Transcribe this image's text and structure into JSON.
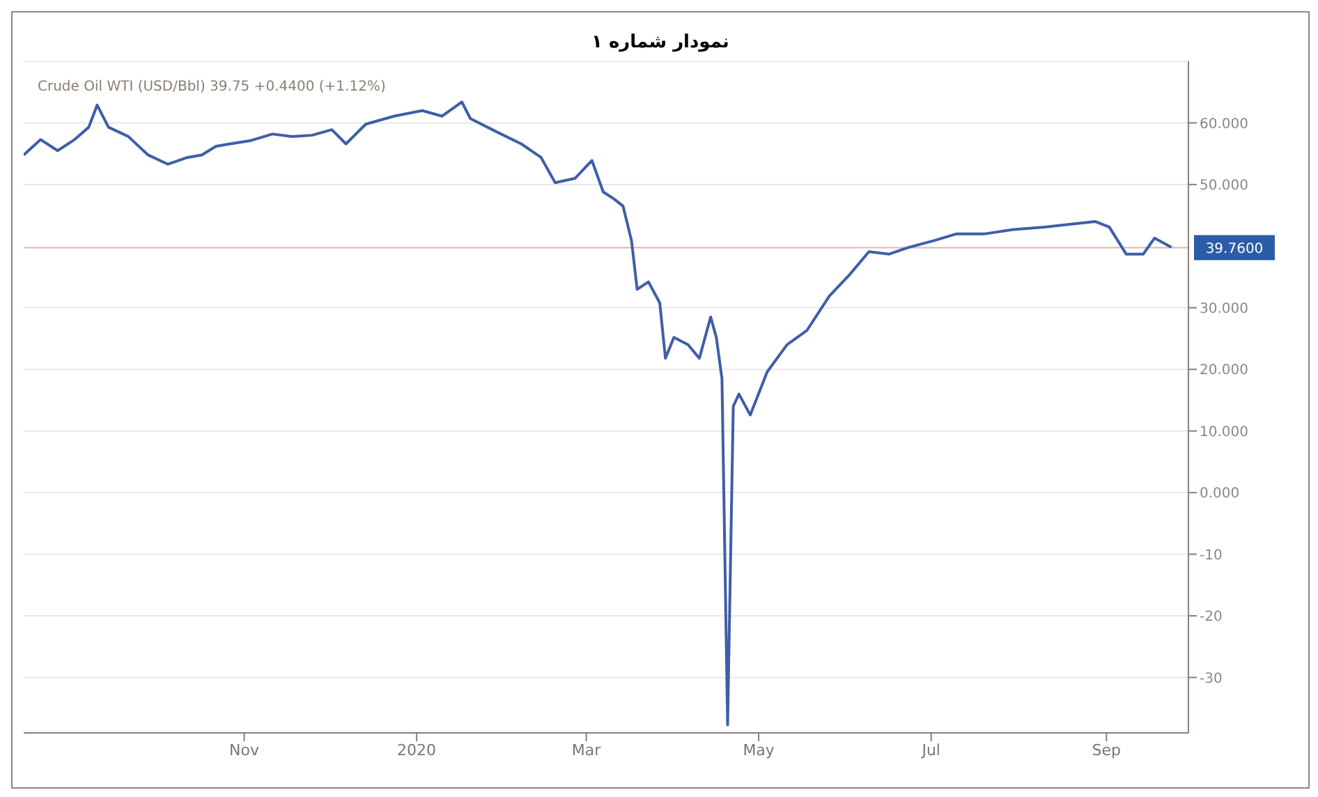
{
  "chart_data": {
    "type": "line",
    "title": "نمودار شماره ۱",
    "subtitle": "Crude Oil WTI (USD/Bbl) 39.75 +0.4400 (+1.12%)",
    "x": [
      "2019-08-15",
      "2019-08-21",
      "2019-08-27",
      "2019-09-02",
      "2019-09-07",
      "2019-09-10",
      "2019-09-14",
      "2019-09-21",
      "2019-09-28",
      "2019-10-05",
      "2019-10-12",
      "2019-10-17",
      "2019-10-22",
      "2019-10-27",
      "2019-11-03",
      "2019-11-11",
      "2019-11-18",
      "2019-11-25",
      "2019-12-02",
      "2019-12-07",
      "2019-12-14",
      "2019-12-24",
      "2020-01-03",
      "2020-01-10",
      "2020-01-17",
      "2020-01-20",
      "2020-01-30",
      "2020-02-07",
      "2020-02-14",
      "2020-02-19",
      "2020-02-26",
      "2020-03-03",
      "2020-03-07",
      "2020-03-11",
      "2020-03-14",
      "2020-03-17",
      "2020-03-19",
      "2020-03-23",
      "2020-03-27",
      "2020-03-29",
      "2020-04-01",
      "2020-04-06",
      "2020-04-10",
      "2020-04-14",
      "2020-04-16",
      "2020-04-18",
      "2020-04-20",
      "2020-04-22",
      "2020-04-24",
      "2020-04-28",
      "2020-05-04",
      "2020-05-11",
      "2020-05-18",
      "2020-05-26",
      "2020-06-02",
      "2020-06-09",
      "2020-06-16",
      "2020-06-23",
      "2020-07-02",
      "2020-07-10",
      "2020-07-20",
      "2020-07-30",
      "2020-08-10",
      "2020-08-20",
      "2020-08-28",
      "2020-09-02",
      "2020-09-08",
      "2020-09-14",
      "2020-09-18",
      "2020-09-24"
    ],
    "series": [
      {
        "color": "#3f5ea8",
        "values": [
          54.8,
          57.3,
          55.5,
          57.3,
          59.3,
          62.9,
          59.3,
          57.8,
          54.8,
          53.3,
          54.4,
          54.8,
          56.2,
          56.6,
          57.1,
          58.2,
          57.8,
          58.0,
          58.9,
          56.6,
          59.8,
          61.1,
          62.0,
          61.1,
          63.4,
          60.7,
          58.4,
          56.6,
          54.4,
          50.3,
          51.0,
          53.9,
          48.8,
          47.6,
          46.5,
          40.9,
          33.0,
          34.2,
          30.8,
          21.8,
          25.2,
          24.0,
          21.8,
          28.5,
          25.2,
          18.5,
          -37.7,
          14.0,
          16.0,
          12.6,
          19.6,
          24.0,
          26.3,
          31.9,
          35.3,
          39.1,
          38.7,
          39.8,
          40.9,
          42.0,
          42.0,
          42.7,
          43.1,
          43.6,
          44.0,
          43.1,
          38.7,
          38.7,
          41.3,
          39.8
        ]
      }
    ],
    "xlim": [
      "2019-08-15",
      "2020-09-30"
    ],
    "xticks": [
      {
        "value": "2019-11-01",
        "label": "Nov"
      },
      {
        "value": "2020-01-01",
        "label": "2020"
      },
      {
        "value": "2020-03-01",
        "label": "Mar"
      },
      {
        "value": "2020-05-01",
        "label": "May"
      },
      {
        "value": "2020-07-01",
        "label": "Jul"
      },
      {
        "value": "2020-09-01",
        "label": "Sep"
      }
    ],
    "ylim": [
      -39,
      70
    ],
    "yticks": [
      {
        "value": 60,
        "label": "60.000"
      },
      {
        "value": 50,
        "label": "50.000"
      },
      {
        "value": 30,
        "label": "30.000"
      },
      {
        "value": 20,
        "label": "20.000"
      },
      {
        "value": 10,
        "label": "10.000"
      },
      {
        "value": 0,
        "label": "0.000"
      },
      -10,
      -20,
      -30
    ],
    "ref_lines": [
      {
        "axis": "y",
        "value": 39.76,
        "label": "39.7600",
        "color": "#d9b8b0"
      }
    ],
    "grid": "y",
    "marker": "none",
    "line_style": "solid"
  }
}
